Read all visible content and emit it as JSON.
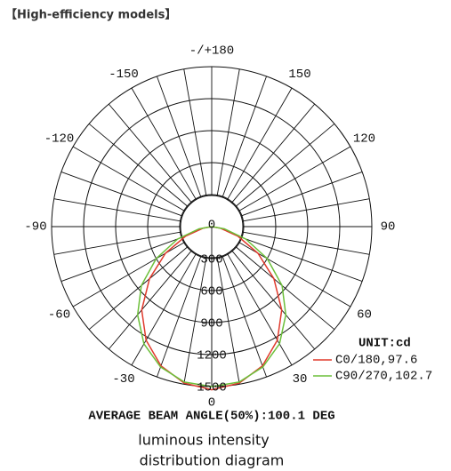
{
  "header": "【High-efficiency models】",
  "chart_data": {
    "type": "polar",
    "x": [
      -90,
      -80,
      -70,
      -60,
      -50,
      -40,
      -30,
      -20,
      -10,
      0,
      10,
      20,
      30,
      40,
      50,
      60,
      70,
      80,
      90
    ],
    "series": [
      {
        "name": "C0/180,97.6",
        "color": "#e03a2c",
        "values": [
          0,
          80,
          260,
          500,
          760,
          1020,
          1230,
          1390,
          1490,
          1530,
          1490,
          1390,
          1230,
          1020,
          760,
          500,
          260,
          80,
          0
        ]
      },
      {
        "name": "C90/270,102.7",
        "color": "#6cbf3a",
        "values": [
          0,
          120,
          340,
          600,
          860,
          1080,
          1270,
          1400,
          1480,
          1500,
          1480,
          1400,
          1270,
          1080,
          860,
          600,
          340,
          120,
          0
        ]
      }
    ],
    "rlim": [
      0,
      1500
    ],
    "rticks": [
      0,
      300,
      600,
      900,
      1200,
      1500
    ],
    "xticks": [
      {
        "value": 180,
        "label": "-/+180"
      },
      150,
      120,
      90,
      60,
      30,
      0,
      -30,
      -60,
      -90,
      -120,
      -150
    ],
    "legend_title": "UNIT:cd",
    "note": "AVERAGE BEAM ANGLE(50%):100.1 DEG"
  },
  "caption": [
    "luminous intensity",
    "distribution diagram"
  ]
}
